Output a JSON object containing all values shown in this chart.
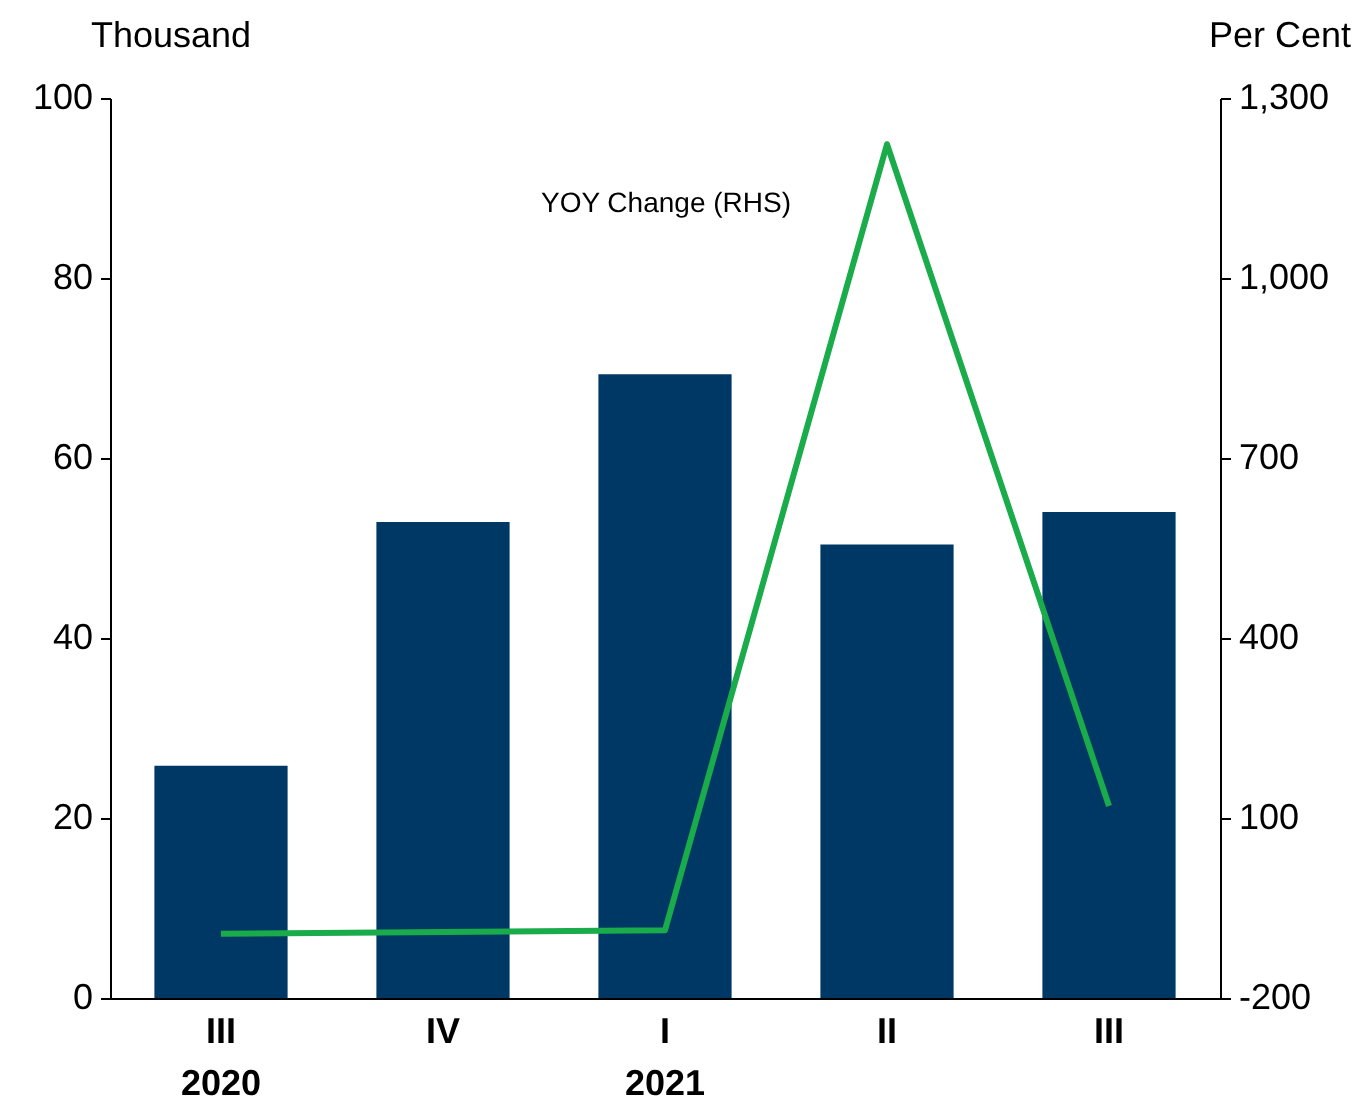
{
  "chart_data": {
    "type": "bar",
    "categories": [
      "III\n2020",
      "IV",
      "I\n2021",
      "II",
      "III"
    ],
    "ylabel": "Thousand",
    "y2label": "Per Cent",
    "series": [
      {
        "type": "bar",
        "color": "#003865",
        "values": [
          25.8,
          52.9,
          69.3,
          50.4,
          54
        ]
      },
      {
        "type": "line",
        "name": "YOY Change (RHS)",
        "axis": "y2",
        "color": "#1aab4b",
        "values": [
          -93,
          -90,
          -87,
          1223,
          120
        ]
      }
    ],
    "ylim": [
      0,
      100
    ],
    "yticks": [
      0,
      20,
      40,
      60,
      80,
      100
    ],
    "y2lim": [
      -200,
      1300
    ],
    "y2ticks": [
      -200,
      {
        "value": 100,
        "label": "100"
      },
      {
        "value": 400,
        "label": "400"
      },
      {
        "value": 700,
        "label": "700"
      },
      {
        "value": 1000,
        "label": "1,000"
      },
      {
        "value": 1300,
        "label": "1,300"
      }
    ],
    "grid": false,
    "legend": false
  }
}
